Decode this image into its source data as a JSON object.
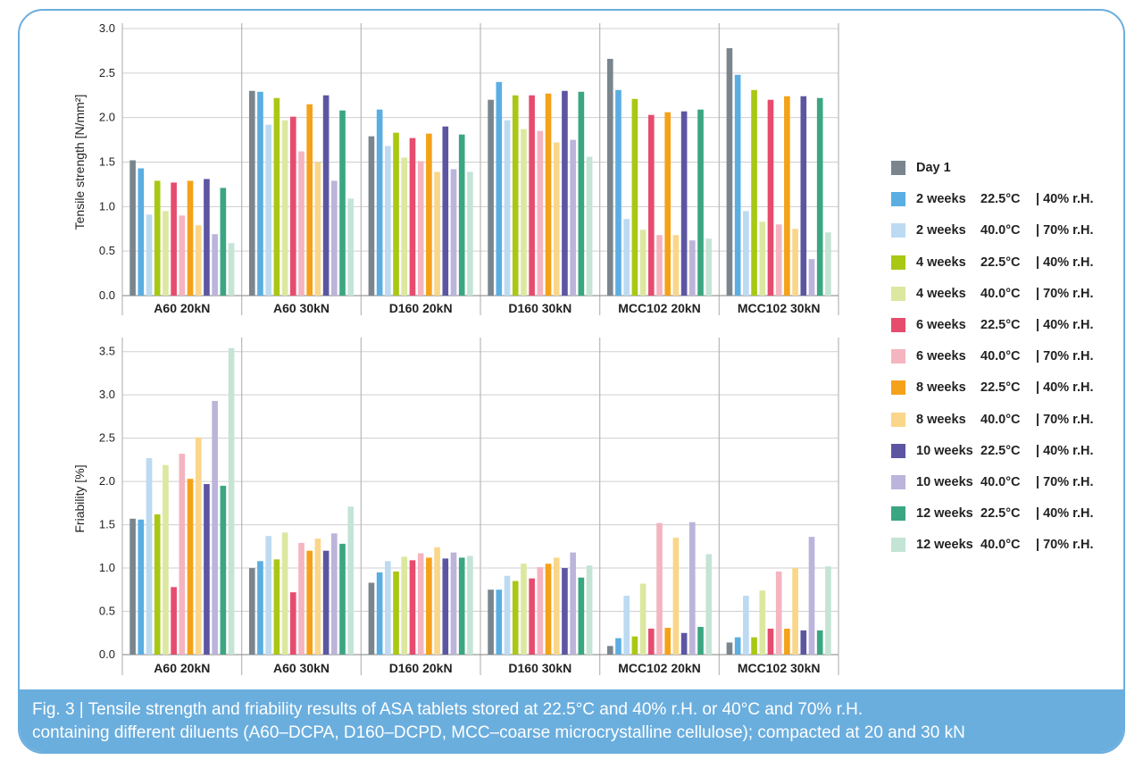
{
  "caption": {
    "line1": "Fig. 3 | Tensile strength and friability results of ASA tablets stored at 22.5°C and 40% r.H. or 40°C and 70% r.H.",
    "line2": "containing different diluents (A60–DCPA, D160–DCPD, MCC–coarse microcrystalline cellulose); compacted at 20 and 30 kN"
  },
  "legend": [
    {
      "label": "Day 1",
      "temp": "",
      "rh": "",
      "color": "#7a858d"
    },
    {
      "label": "2 weeks",
      "temp": "22.5°C",
      "rh": "| 40% r.H.",
      "color": "#5aaee2"
    },
    {
      "label": "2 weeks",
      "temp": "40.0°C",
      "rh": "| 70% r.H.",
      "color": "#bcdaf2"
    },
    {
      "label": "4 weeks",
      "temp": "22.5°C",
      "rh": "| 40% r.H.",
      "color": "#a8c814"
    },
    {
      "label": "4 weeks",
      "temp": "40.0°C",
      "rh": "| 70% r.H.",
      "color": "#dce7a0"
    },
    {
      "label": "6 weeks",
      "temp": "22.5°C",
      "rh": "| 40% r.H.",
      "color": "#e64c6e"
    },
    {
      "label": "6 weeks",
      "temp": "40.0°C",
      "rh": "| 70% r.H.",
      "color": "#f4b4c0"
    },
    {
      "label": "8 weeks",
      "temp": "22.5°C",
      "rh": "| 40% r.H.",
      "color": "#f4a21a"
    },
    {
      "label": "8 weeks",
      "temp": "40.0°C",
      "rh": "| 70% r.H.",
      "color": "#fad68a"
    },
    {
      "label": "10 weeks",
      "temp": "22.5°C",
      "rh": "| 40% r.H.",
      "color": "#5c56a2"
    },
    {
      "label": "10 weeks",
      "temp": "40.0°C",
      "rh": "| 70% r.H.",
      "color": "#bcb4da"
    },
    {
      "label": "12 weeks",
      "temp": "22.5°C",
      "rh": "| 40% r.H.",
      "color": "#3aa682"
    },
    {
      "label": "12 weeks",
      "temp": "40.0°C",
      "rh": "| 70% r.H.",
      "color": "#c4e4d6"
    }
  ],
  "chart_data": [
    {
      "type": "bar",
      "title": "",
      "xlabel": "",
      "ylabel": "Tensile strength [N/mm²]",
      "ylim": [
        0,
        3.0
      ],
      "yticks": [
        "0.0",
        "0.5",
        "1.0",
        "1.5",
        "2.0",
        "2.5",
        "3.0"
      ],
      "grid": true,
      "categories": [
        "A60 20kN",
        "A60 30kN",
        "D160 20kN",
        "D160 30kN",
        "MCC102 20kN",
        "MCC102 30kN"
      ],
      "series": [
        {
          "name": "Day 1",
          "values": [
            1.52,
            2.3,
            1.79,
            2.2,
            2.66,
            2.78
          ]
        },
        {
          "name": "2 weeks 22.5°C | 40% r.H.",
          "values": [
            1.43,
            2.29,
            2.09,
            2.4,
            2.31,
            2.48
          ]
        },
        {
          "name": "2 weeks 40.0°C | 70% r.H.",
          "values": [
            0.91,
            1.92,
            1.68,
            1.97,
            0.86,
            0.95
          ]
        },
        {
          "name": "4 weeks 22.5°C | 40% r.H.",
          "values": [
            1.29,
            2.22,
            1.83,
            2.25,
            2.21,
            2.31
          ]
        },
        {
          "name": "4 weeks 40.0°C | 70% r.H.",
          "values": [
            0.95,
            1.97,
            1.55,
            1.87,
            0.74,
            0.83
          ]
        },
        {
          "name": "6 weeks 22.5°C | 40% r.H.",
          "values": [
            1.27,
            2.01,
            1.77,
            2.25,
            2.03,
            2.2
          ]
        },
        {
          "name": "6 weeks 40.0°C | 70% r.H.",
          "values": [
            0.9,
            1.62,
            1.51,
            1.85,
            0.68,
            0.8
          ]
        },
        {
          "name": "8 weeks 22.5°C | 40% r.H.",
          "values": [
            1.29,
            2.15,
            1.82,
            2.27,
            2.06,
            2.24
          ]
        },
        {
          "name": "8 weeks 40.0°C | 70% r.H.",
          "values": [
            0.79,
            1.5,
            1.39,
            1.72,
            0.68,
            0.75
          ]
        },
        {
          "name": "10 weeks 22.5°C | 40% r.H.",
          "values": [
            1.31,
            2.25,
            1.9,
            2.3,
            2.07,
            2.24
          ]
        },
        {
          "name": "10 weeks 40.0°C | 70% r.H.",
          "values": [
            0.69,
            1.29,
            1.42,
            1.75,
            0.62,
            0.41
          ]
        },
        {
          "name": "12 weeks 22.5°C | 40% r.H.",
          "values": [
            1.21,
            2.08,
            1.81,
            2.29,
            2.09,
            2.22
          ]
        },
        {
          "name": "12 weeks 40.0°C | 70% r.H.",
          "values": [
            0.59,
            1.09,
            1.39,
            1.56,
            0.64,
            0.71
          ]
        }
      ]
    },
    {
      "type": "bar",
      "title": "",
      "xlabel": "",
      "ylabel": "Friability [%]",
      "ylim": [
        0,
        3.6
      ],
      "yticks": [
        "0.0",
        "0.5",
        "1.0",
        "1.5",
        "2.0",
        "2.5",
        "3.0",
        "3.5"
      ],
      "grid": true,
      "categories": [
        "A60 20kN",
        "A60 30kN",
        "D160 20kN",
        "D160 30kN",
        "MCC102 20kN",
        "MCC102 30kN"
      ],
      "series": [
        {
          "name": "Day 1",
          "values": [
            1.57,
            1.0,
            0.83,
            0.75,
            0.1,
            0.14
          ]
        },
        {
          "name": "2 weeks 22.5°C | 40% r.H.",
          "values": [
            1.56,
            1.08,
            0.95,
            0.75,
            0.19,
            0.2
          ]
        },
        {
          "name": "2 weeks 40.0°C | 70% r.H.",
          "values": [
            2.27,
            1.37,
            1.08,
            0.91,
            0.68,
            0.68
          ]
        },
        {
          "name": "4 weeks 22.5°C | 40% r.H.",
          "values": [
            1.62,
            1.1,
            0.96,
            0.85,
            0.21,
            0.2
          ]
        },
        {
          "name": "4 weeks 40.0°C | 70% r.H.",
          "values": [
            2.19,
            1.41,
            1.13,
            1.05,
            0.82,
            0.74
          ]
        },
        {
          "name": "6 weeks 22.5°C | 40% r.H.",
          "values": [
            0.78,
            0.72,
            1.09,
            0.88,
            0.3,
            0.3
          ]
        },
        {
          "name": "6 weeks 40.0°C | 70% r.H.",
          "values": [
            2.32,
            1.29,
            1.17,
            1.01,
            1.52,
            0.96
          ]
        },
        {
          "name": "8 weeks 22.5°C | 40% r.H.",
          "values": [
            2.03,
            1.2,
            1.12,
            1.05,
            0.31,
            0.3
          ]
        },
        {
          "name": "8 weeks 40.0°C | 70% r.H.",
          "values": [
            2.51,
            1.34,
            1.24,
            1.12,
            1.35,
            1.0
          ]
        },
        {
          "name": "10 weeks 22.5°C | 40% r.H.",
          "values": [
            1.97,
            1.2,
            1.11,
            1.0,
            0.25,
            0.28
          ]
        },
        {
          "name": "10 weeks 40.0°C | 70% r.H.",
          "values": [
            2.93,
            1.4,
            1.18,
            1.18,
            1.53,
            1.36
          ]
        },
        {
          "name": "12 weeks 22.5°C | 40% r.H.",
          "values": [
            1.95,
            1.28,
            1.12,
            0.89,
            0.32,
            0.28
          ]
        },
        {
          "name": "12 weeks 40.0°C | 70% r.H.",
          "values": [
            3.54,
            1.71,
            1.14,
            1.03,
            1.16,
            1.02
          ]
        }
      ]
    }
  ]
}
